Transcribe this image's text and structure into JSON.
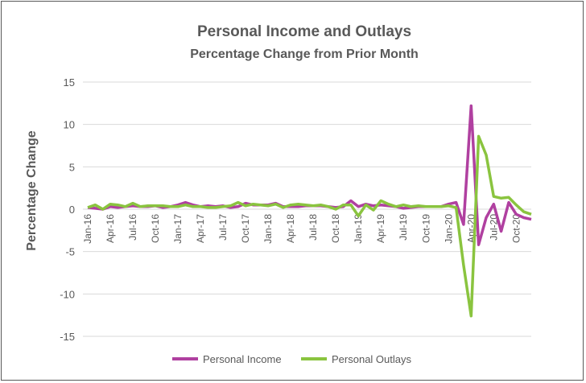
{
  "chart_data": {
    "type": "line",
    "title": "Personal Income and Outlays",
    "subtitle": "Percentage Change from Prior Month",
    "xlabel": "",
    "ylabel": "Percentage Change",
    "ylim": [
      -15,
      15
    ],
    "yticks": [
      15,
      10,
      5,
      0,
      -5,
      -10,
      -15
    ],
    "grid": "horizontal",
    "legend_position": "bottom",
    "x": [
      "Jan-16",
      "Feb-16",
      "Mar-16",
      "Apr-16",
      "May-16",
      "Jun-16",
      "Jul-16",
      "Aug-16",
      "Sep-16",
      "Oct-16",
      "Nov-16",
      "Dec-16",
      "Jan-17",
      "Feb-17",
      "Mar-17",
      "Apr-17",
      "May-17",
      "Jun-17",
      "Jul-17",
      "Aug-17",
      "Sep-17",
      "Oct-17",
      "Nov-17",
      "Dec-17",
      "Jan-18",
      "Feb-18",
      "Mar-18",
      "Apr-18",
      "May-18",
      "Jun-18",
      "Jul-18",
      "Aug-18",
      "Sep-18",
      "Oct-18",
      "Nov-18",
      "Dec-18",
      "Jan-19",
      "Feb-19",
      "Mar-19",
      "Apr-19",
      "May-19",
      "Jun-19",
      "Jul-19",
      "Aug-19",
      "Sep-19",
      "Oct-19",
      "Nov-19",
      "Dec-19",
      "Jan-20",
      "Feb-20",
      "Mar-20",
      "Apr-20",
      "May-20",
      "Jun-20",
      "Jul-20",
      "Aug-20",
      "Sep-20",
      "Oct-20",
      "Nov-20",
      "Dec-20"
    ],
    "tick_labels": [
      "Jan-16",
      "Apr-16",
      "Jul-16",
      "Oct-16",
      "Jan-17",
      "Apr-17",
      "Jul-17",
      "Oct-17",
      "Jan-18",
      "Apr-18",
      "Jul-18",
      "Oct-18",
      "Jan-19",
      "Apr-19",
      "Jul-19",
      "Oct-19",
      "Jan-20",
      "Apr-20",
      "Jul-20",
      "Oct-20"
    ],
    "series": [
      {
        "name": "Personal Income",
        "color": "#b040a0",
        "values": [
          0.2,
          0.1,
          0.0,
          0.3,
          0.2,
          0.3,
          0.4,
          0.3,
          0.3,
          0.4,
          0.2,
          0.3,
          0.5,
          0.8,
          0.5,
          0.3,
          0.4,
          0.3,
          0.4,
          0.2,
          0.3,
          0.7,
          0.5,
          0.5,
          0.5,
          0.7,
          0.3,
          0.3,
          0.3,
          0.4,
          0.4,
          0.4,
          0.3,
          0.2,
          0.3,
          1.0,
          0.3,
          0.6,
          0.4,
          0.5,
          0.4,
          0.3,
          0.1,
          0.2,
          0.3,
          0.3,
          0.3,
          0.3,
          0.6,
          0.8,
          -1.8,
          12.2,
          -4.2,
          -1.0,
          0.6,
          -2.6,
          0.8,
          -0.6,
          -1.0,
          -1.2
        ]
      },
      {
        "name": "Personal Outlays",
        "color": "#8ac43f",
        "values": [
          0.2,
          0.5,
          0.0,
          0.6,
          0.5,
          0.3,
          0.7,
          0.3,
          0.4,
          0.4,
          0.4,
          0.3,
          0.3,
          0.5,
          0.3,
          0.3,
          0.2,
          0.2,
          0.3,
          0.4,
          0.8,
          0.4,
          0.6,
          0.5,
          0.4,
          0.6,
          0.2,
          0.5,
          0.6,
          0.5,
          0.4,
          0.5,
          0.3,
          0.0,
          0.5,
          0.5,
          -0.8,
          0.5,
          -0.1,
          1.0,
          0.6,
          0.3,
          0.5,
          0.3,
          0.4,
          0.3,
          0.3,
          0.3,
          0.4,
          0.2,
          -6.6,
          -12.6,
          8.6,
          6.4,
          1.5,
          1.3,
          1.4,
          0.5,
          -0.3,
          -0.6
        ]
      }
    ]
  }
}
